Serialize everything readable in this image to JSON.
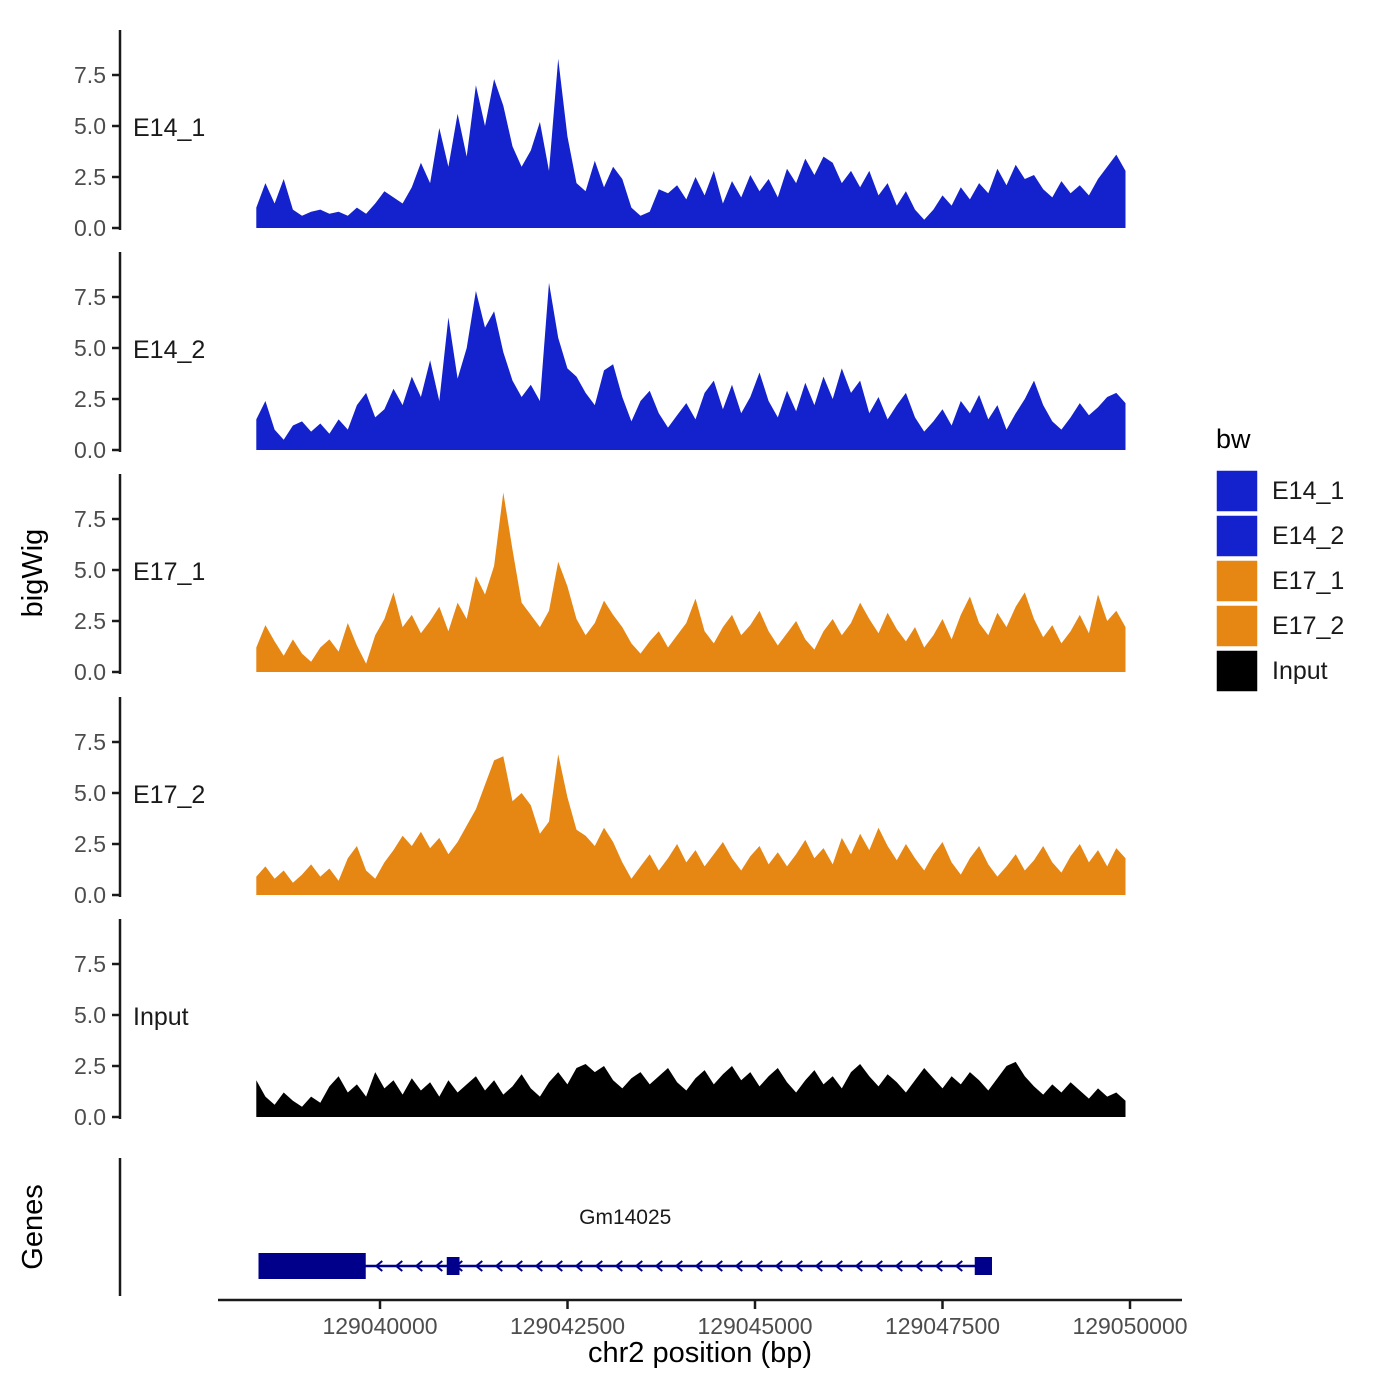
{
  "labels": {
    "y_axis": "bigWig",
    "genes_axis": "Genes",
    "x_axis": "chr2 position (bp)"
  },
  "legend": {
    "title": "bw",
    "items": [
      {
        "label": "E14_1",
        "color": "#1322CC"
      },
      {
        "label": "E14_2",
        "color": "#1322CC"
      },
      {
        "label": "E17_1",
        "color": "#E68613"
      },
      {
        "label": "E17_2",
        "color": "#E68613"
      },
      {
        "label": "Input",
        "color": "#000000"
      }
    ]
  },
  "colors": {
    "blue": "#1322CC",
    "orange": "#E68613",
    "black": "#000000",
    "gene": "#00008B",
    "axis_text": "#4d4d4d",
    "axis_line": "#1a1a1a"
  },
  "chart_data": {
    "type": "area",
    "title": "",
    "xlabel": "chr2 position (bp)",
    "ylabel": "bigWig",
    "xlim": [
      129038350,
      129049940
    ],
    "ylim": [
      0,
      9
    ],
    "x_start": 129038350,
    "x_step": 122,
    "y_ticks": [
      0.0,
      2.5,
      5.0,
      7.5
    ],
    "y_tick_labels": [
      "0.0",
      "2.5",
      "5.0",
      "7.5"
    ],
    "x_axis": {
      "ticks": [
        129040000,
        129042500,
        129045000,
        129047500,
        129050000
      ],
      "labels": [
        "129040000",
        "129042500",
        "129045000",
        "129047500",
        "129050000"
      ]
    },
    "series": [
      {
        "name": "E14_1",
        "color": "#1322CC",
        "values": [
          1.0,
          2.2,
          1.2,
          2.4,
          0.9,
          0.6,
          0.8,
          0.9,
          0.7,
          0.8,
          0.6,
          1.0,
          0.7,
          1.2,
          1.8,
          1.5,
          1.2,
          2.0,
          3.2,
          2.2,
          4.9,
          3.0,
          5.6,
          3.5,
          7.0,
          5.0,
          7.3,
          6.0,
          4.0,
          3.0,
          3.8,
          5.2,
          2.8,
          8.3,
          4.5,
          2.2,
          1.8,
          3.3,
          2.0,
          3.0,
          2.4,
          1.0,
          0.6,
          0.8,
          1.9,
          1.7,
          2.1,
          1.4,
          2.5,
          1.6,
          2.8,
          1.2,
          2.3,
          1.5,
          2.6,
          1.8,
          2.4,
          1.5,
          2.9,
          2.2,
          3.4,
          2.6,
          3.5,
          3.2,
          2.2,
          2.8,
          2.0,
          2.8,
          1.6,
          2.2,
          1.1,
          1.8,
          0.9,
          0.4,
          0.9,
          1.6,
          1.1,
          2.0,
          1.4,
          2.2,
          1.7,
          2.9,
          2.1,
          3.1,
          2.4,
          2.6,
          1.9,
          1.5,
          2.3,
          1.7,
          2.1,
          1.6,
          2.4,
          3.0,
          3.6,
          2.8
        ]
      },
      {
        "name": "E14_2",
        "color": "#1322CC",
        "values": [
          1.5,
          2.4,
          1.0,
          0.5,
          1.2,
          1.4,
          0.9,
          1.3,
          0.8,
          1.5,
          1.0,
          2.2,
          2.8,
          1.6,
          2.0,
          3.0,
          2.2,
          3.6,
          2.6,
          4.4,
          2.4,
          6.5,
          3.5,
          5.0,
          7.8,
          6.0,
          6.8,
          4.8,
          3.4,
          2.6,
          3.2,
          2.4,
          8.2,
          5.5,
          4.0,
          3.6,
          2.8,
          2.2,
          3.9,
          4.2,
          2.6,
          1.4,
          2.4,
          2.9,
          1.8,
          1.1,
          1.7,
          2.3,
          1.5,
          2.8,
          3.4,
          2.0,
          3.2,
          1.8,
          2.6,
          3.8,
          2.4,
          1.6,
          2.9,
          1.9,
          3.3,
          2.2,
          3.6,
          2.5,
          4.0,
          2.8,
          3.4,
          1.8,
          2.6,
          1.5,
          2.2,
          2.8,
          1.6,
          0.9,
          1.4,
          2.0,
          1.2,
          2.4,
          1.8,
          2.7,
          1.5,
          2.2,
          1.0,
          1.8,
          2.5,
          3.4,
          2.2,
          1.4,
          1.0,
          1.6,
          2.3,
          1.7,
          2.1,
          2.6,
          2.8,
          2.3
        ]
      },
      {
        "name": "E17_1",
        "color": "#E68613",
        "values": [
          1.2,
          2.3,
          1.5,
          0.8,
          1.6,
          0.9,
          0.5,
          1.2,
          1.6,
          1.0,
          2.4,
          1.3,
          0.4,
          1.8,
          2.6,
          3.9,
          2.2,
          2.8,
          1.9,
          2.5,
          3.2,
          2.0,
          3.4,
          2.6,
          4.7,
          3.8,
          5.2,
          8.8,
          6.0,
          3.4,
          2.8,
          2.2,
          3.0,
          5.4,
          4.2,
          2.6,
          1.8,
          2.4,
          3.5,
          2.8,
          2.2,
          1.4,
          0.9,
          1.5,
          2.0,
          1.2,
          1.8,
          2.4,
          3.6,
          2.0,
          1.4,
          2.2,
          2.8,
          1.8,
          2.3,
          3.0,
          2.0,
          1.3,
          1.9,
          2.5,
          1.6,
          1.1,
          2.0,
          2.6,
          1.8,
          2.4,
          3.4,
          2.6,
          1.9,
          2.9,
          2.1,
          1.5,
          2.2,
          1.2,
          1.8,
          2.6,
          1.6,
          2.8,
          3.7,
          2.4,
          1.8,
          2.9,
          2.2,
          3.2,
          3.9,
          2.6,
          1.7,
          2.3,
          1.4,
          2.0,
          2.8,
          1.9,
          3.8,
          2.5,
          3.0,
          2.2
        ]
      },
      {
        "name": "E17_2",
        "color": "#E68613",
        "values": [
          0.9,
          1.4,
          0.8,
          1.2,
          0.6,
          1.0,
          1.5,
          0.9,
          1.3,
          0.7,
          1.8,
          2.4,
          1.2,
          0.8,
          1.6,
          2.2,
          2.9,
          2.4,
          3.1,
          2.3,
          2.8,
          2.0,
          2.6,
          3.4,
          4.2,
          5.4,
          6.6,
          6.8,
          4.6,
          5.0,
          4.4,
          3.0,
          3.6,
          6.9,
          4.8,
          3.2,
          2.9,
          2.4,
          3.3,
          2.6,
          1.6,
          0.8,
          1.4,
          2.0,
          1.2,
          1.8,
          2.5,
          1.6,
          2.2,
          1.4,
          2.0,
          2.6,
          1.8,
          1.2,
          1.9,
          2.4,
          1.5,
          2.1,
          1.4,
          2.0,
          2.7,
          1.8,
          2.3,
          1.5,
          2.8,
          2.0,
          3.0,
          2.2,
          3.3,
          2.4,
          1.7,
          2.5,
          1.8,
          1.2,
          2.0,
          2.6,
          1.6,
          1.0,
          1.8,
          2.4,
          1.5,
          0.9,
          1.4,
          2.0,
          1.2,
          1.7,
          2.4,
          1.6,
          1.1,
          1.9,
          2.5,
          1.6,
          2.2,
          1.4,
          2.3,
          1.8
        ]
      },
      {
        "name": "Input",
        "color": "#000000",
        "values": [
          1.8,
          1.0,
          0.6,
          1.2,
          0.8,
          0.5,
          1.0,
          0.7,
          1.5,
          2.0,
          1.2,
          1.6,
          1.0,
          2.2,
          1.4,
          1.8,
          1.1,
          1.9,
          1.3,
          1.7,
          1.0,
          1.8,
          1.2,
          1.6,
          2.0,
          1.3,
          1.8,
          1.1,
          1.5,
          2.1,
          1.4,
          1.0,
          1.7,
          2.2,
          1.6,
          2.4,
          2.6,
          2.2,
          2.5,
          1.8,
          1.4,
          1.9,
          2.2,
          1.6,
          2.0,
          2.4,
          1.7,
          1.3,
          1.9,
          2.3,
          1.6,
          2.1,
          2.5,
          1.8,
          2.2,
          1.5,
          2.0,
          2.4,
          1.7,
          1.2,
          1.8,
          2.3,
          1.6,
          2.0,
          1.4,
          2.2,
          2.6,
          2.0,
          1.5,
          2.1,
          1.7,
          1.2,
          1.8,
          2.4,
          1.9,
          1.4,
          2.0,
          1.6,
          2.2,
          1.8,
          1.3,
          1.9,
          2.5,
          2.7,
          2.0,
          1.5,
          1.1,
          1.6,
          1.2,
          1.7,
          1.3,
          0.9,
          1.4,
          1.0,
          1.2,
          0.8
        ]
      }
    ],
    "gene": {
      "name": "Gm14025",
      "strand": "-",
      "color": "#00008B",
      "line_start": 129038380,
      "line_end": 129048160,
      "arrow_start": 129039950,
      "arrow_end": 129047800,
      "exons": [
        {
          "start": 129038380,
          "end": 129039810,
          "kind": "thick"
        },
        {
          "start": 129040890,
          "end": 129041060,
          "kind": "thin"
        },
        {
          "start": 129047930,
          "end": 129048160,
          "kind": "thin"
        }
      ]
    }
  }
}
